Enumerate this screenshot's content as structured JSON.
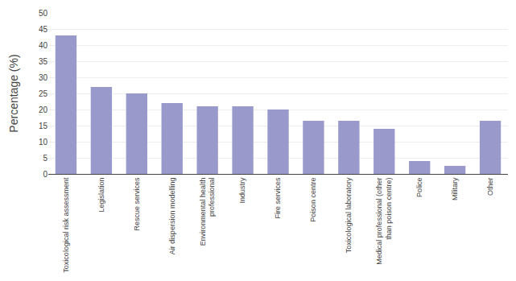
{
  "chart_data": {
    "type": "bar",
    "categories": [
      "Toxicological risk assessment",
      "Legislation",
      "Rescue services",
      "Air dispersion modelling",
      "Environmental health\nprofessional",
      "Industry",
      "Fire services",
      "Poison centre",
      "Toxicological laboratory",
      "Medical professional (other\nthan poison centre)",
      "Police",
      "Military",
      "Other"
    ],
    "values": [
      43,
      27,
      25,
      22,
      21,
      21,
      20,
      16.5,
      16.5,
      14,
      4,
      2.5,
      16.5
    ],
    "color": "#9999cc",
    "ylabel": "Percentage (%)",
    "ylim": [
      0,
      50
    ],
    "yticks": [
      0,
      5,
      10,
      15,
      20,
      25,
      30,
      35,
      40,
      45,
      50
    ],
    "grid": true
  }
}
